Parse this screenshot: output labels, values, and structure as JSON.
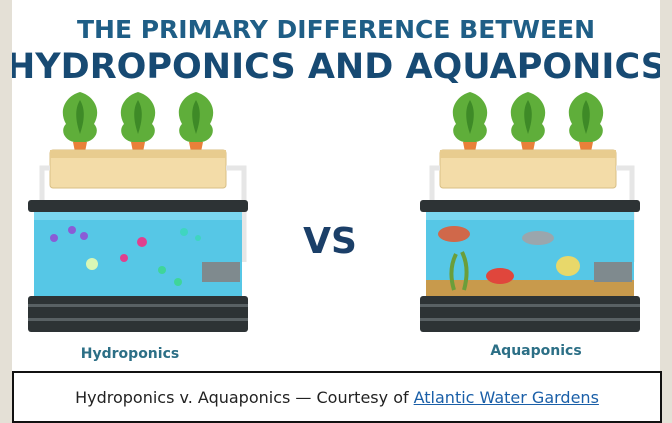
{
  "header": {
    "title_line1": "THE PRIMARY DIFFERENCE BETWEEN",
    "title_line2": "HYDROPONICS AND AQUAPONICS"
  },
  "illustration": {
    "left_label": "Hydroponics",
    "center_label": "VS",
    "right_label": "Aquaponics"
  },
  "caption": {
    "text": "Hydroponics v. Aquaponics — Courtesy of",
    "link": "Atlantic Water Gardens"
  }
}
